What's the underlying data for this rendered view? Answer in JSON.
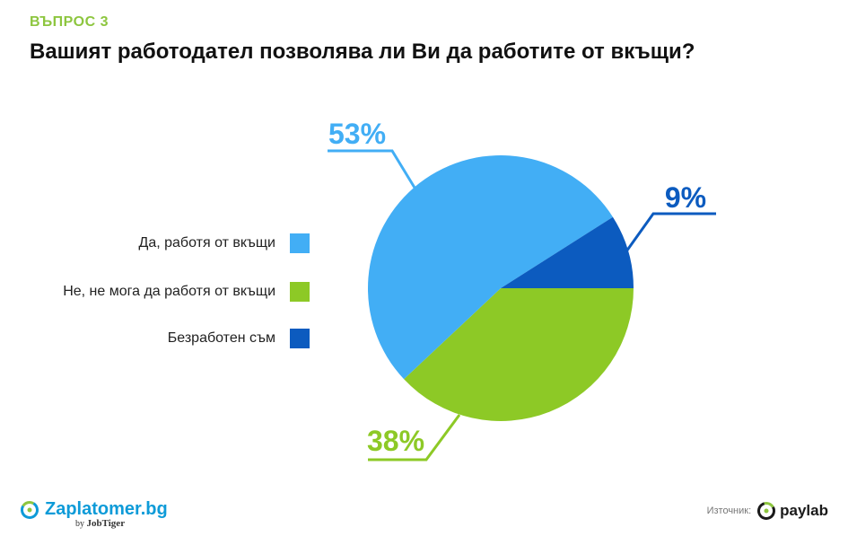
{
  "header": {
    "tag": "ВЪПРОС 3",
    "title": "Вашият работодател позволява ли Ви да работите от вкъщи?"
  },
  "legend": [
    {
      "label": "Да, работя от вкъщи",
      "color": "#42aef5"
    },
    {
      "label": "Не, не мога да работя от вкъщи",
      "color": "#8dc926"
    },
    {
      "label": "Безработен съм",
      "color": "#0c5bbf"
    }
  ],
  "chart_data": {
    "type": "pie",
    "labels": [
      "Да, работя от вкъщи",
      "Не, не мога да работя от вкъщи",
      "Безработен съм"
    ],
    "values": [
      53,
      38,
      9
    ],
    "value_labels": [
      "53%",
      "38%",
      "9%"
    ],
    "colors": [
      "#42aef5",
      "#8dc926",
      "#0c5bbf"
    ],
    "title": "Вашият работодател позволява ли Ви да работите от вкъщи?",
    "legend_position": "left"
  },
  "footer": {
    "brand": "Zaplatomer.bg",
    "brand_by": "by",
    "brand_partner": "JobTiger",
    "source_label": "Източник:",
    "source_brand": "paylab"
  }
}
